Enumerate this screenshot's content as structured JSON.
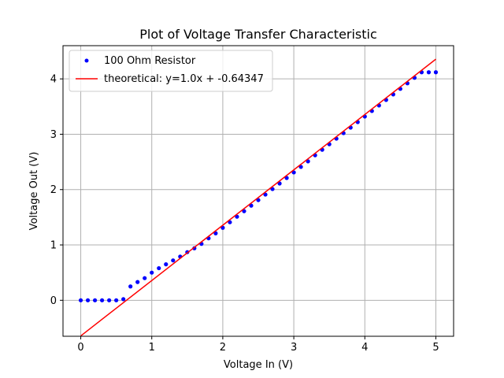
{
  "chart_data": {
    "type": "scatter",
    "title": "Plot of Voltage Transfer Characteristic",
    "xlabel": "Voltage In (V)",
    "ylabel": "Voltage Out (V)",
    "xlim": [
      -0.25,
      5.25
    ],
    "ylim": [
      -0.65,
      4.6
    ],
    "grid": true,
    "legend_position": "top-left",
    "x_ticks": [
      0,
      1,
      2,
      3,
      4,
      5
    ],
    "y_ticks": [
      0,
      1,
      2,
      3,
      4
    ],
    "series": [
      {
        "name": "100 Ohm Resistor",
        "kind": "points",
        "color": "#0000ff",
        "x": [
          0.0,
          0.1,
          0.2,
          0.3,
          0.4,
          0.5,
          0.6,
          0.7,
          0.8,
          0.9,
          1.0,
          1.1,
          1.2,
          1.3,
          1.4,
          1.5,
          1.6,
          1.7,
          1.8,
          1.9,
          2.0,
          2.1,
          2.2,
          2.3,
          2.4,
          2.5,
          2.6,
          2.7,
          2.8,
          2.9,
          3.0,
          3.1,
          3.2,
          3.3,
          3.4,
          3.5,
          3.6,
          3.7,
          3.8,
          3.9,
          4.0,
          4.1,
          4.2,
          4.3,
          4.4,
          4.5,
          4.6,
          4.7,
          4.8,
          4.9,
          5.0
        ],
        "y": [
          0.0,
          0.0,
          0.0,
          0.0,
          0.0,
          0.0,
          0.02,
          0.25,
          0.33,
          0.4,
          0.5,
          0.58,
          0.65,
          0.72,
          0.79,
          0.87,
          0.94,
          1.02,
          1.12,
          1.21,
          1.31,
          1.41,
          1.51,
          1.61,
          1.71,
          1.81,
          1.91,
          2.01,
          2.11,
          2.21,
          2.31,
          2.41,
          2.51,
          2.62,
          2.72,
          2.82,
          2.92,
          3.02,
          3.12,
          3.22,
          3.32,
          3.42,
          3.52,
          3.62,
          3.72,
          3.82,
          3.92,
          4.02,
          4.12,
          4.12,
          4.12
        ]
      },
      {
        "name": "theoretical: y=1.0x + -0.64347",
        "kind": "line",
        "color": "#ff0000",
        "x": [
          0,
          5
        ],
        "y": [
          -0.64347,
          4.35653
        ]
      }
    ]
  }
}
